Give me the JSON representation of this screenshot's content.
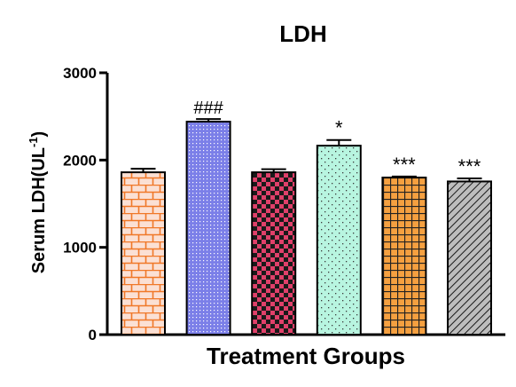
{
  "chart_data": {
    "type": "bar",
    "title": "LDH",
    "xlabel": "Treatment Groups",
    "ylabel": "Serum LDH(UL",
    "ylabel_sup": "-1",
    "ylabel_close": ")",
    "ylim": [
      0,
      3000
    ],
    "yticks": [
      "0",
      "1000",
      "2000",
      "3000"
    ],
    "grid": false,
    "legend": "none",
    "values": [
      1860,
      2440,
      1860,
      2165,
      1800,
      1755
    ],
    "errors": [
      40,
      30,
      35,
      65,
      12,
      35
    ],
    "annotations": [
      "",
      "###",
      "",
      "*",
      "***",
      "***"
    ],
    "bar_styles": [
      {
        "pattern": "brick",
        "bg": "#fbe0d4",
        "fg": "#f07828"
      },
      {
        "pattern": "dots",
        "bg": "#7b7fe8",
        "fg": "#ffffff"
      },
      {
        "pattern": "checker",
        "bg": "#e0406a",
        "fg": "#1a1a1a"
      },
      {
        "pattern": "sparse-dots",
        "bg": "#b8f5e0",
        "fg": "#3a3a3a"
      },
      {
        "pattern": "grid",
        "bg": "#f5a040",
        "fg": "#222222"
      },
      {
        "pattern": "diagonal",
        "bg": "#bdbdbd",
        "fg": "#1a1a1a"
      }
    ]
  }
}
